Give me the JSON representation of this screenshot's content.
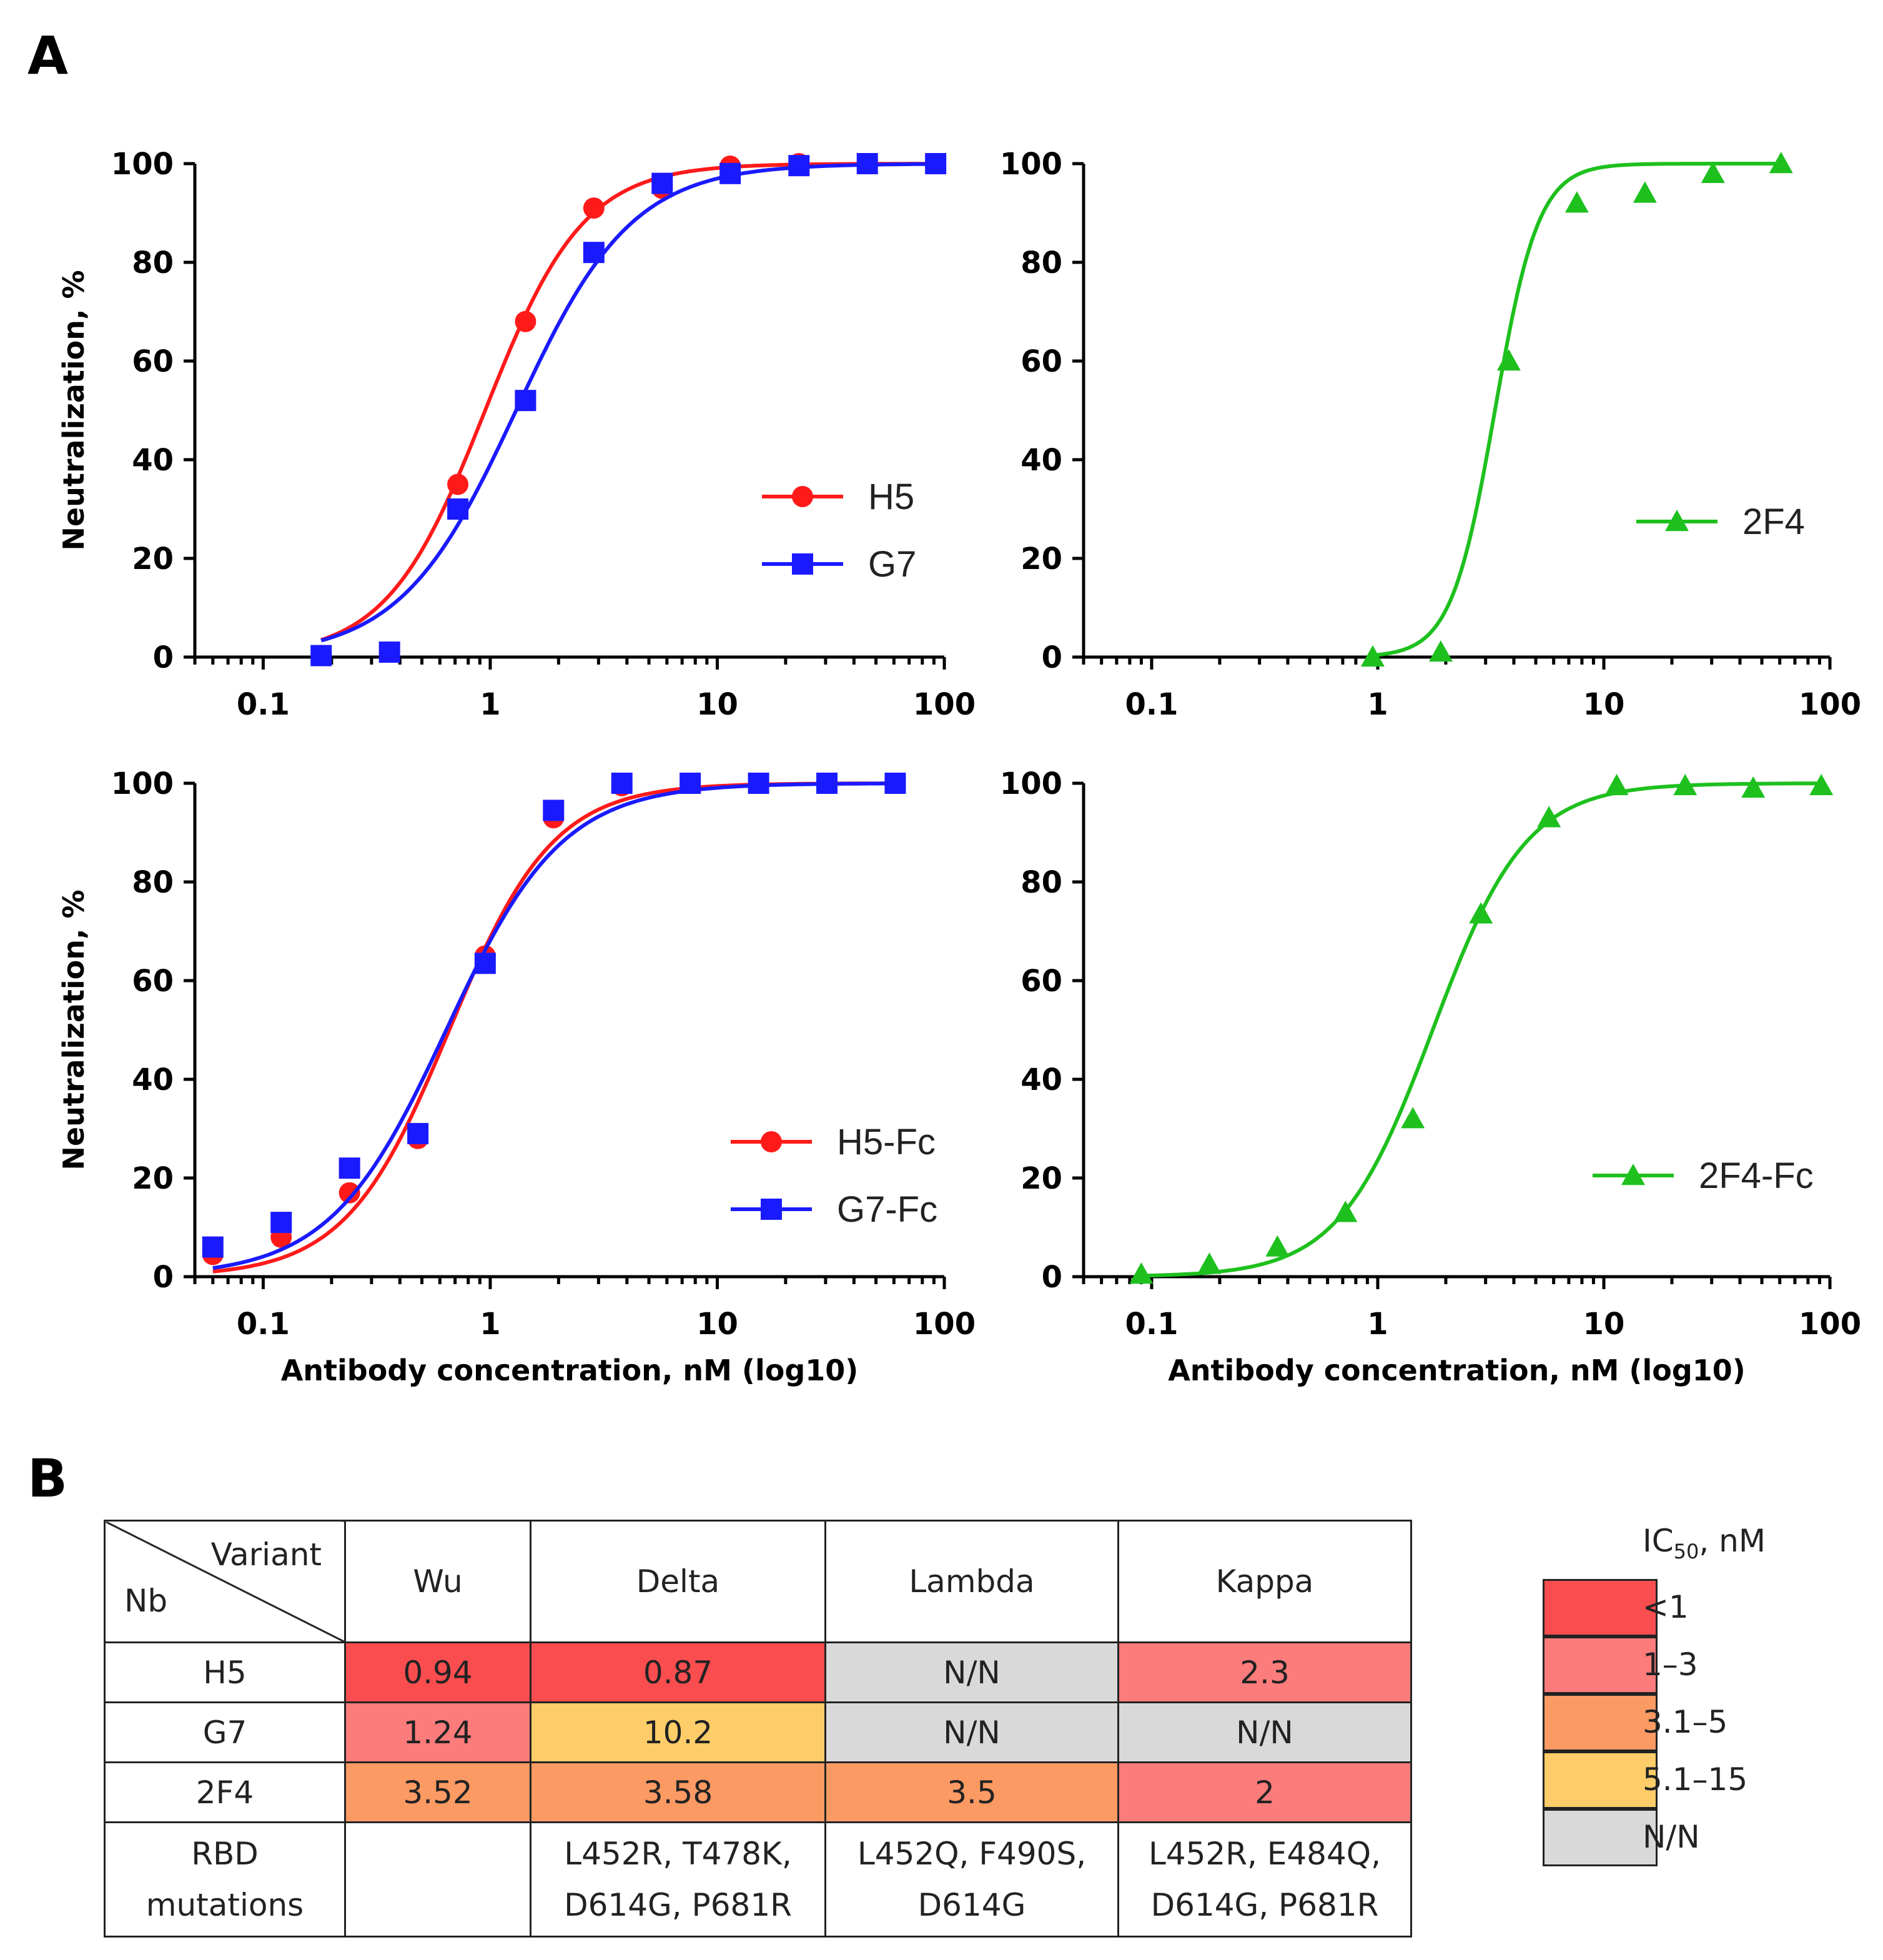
{
  "panel_labels": {
    "a": "A",
    "b": "B"
  },
  "chart_data": [
    {
      "type": "line",
      "ylabel": "Neutralization, %",
      "xlabel": "",
      "xscale": "log10",
      "xlim": [
        0.05,
        100
      ],
      "ylim": [
        0,
        100
      ],
      "xticks": [
        "0.1",
        "1",
        "10",
        "100"
      ],
      "yticks": [
        "0",
        "20",
        "40",
        "60",
        "80",
        "100"
      ],
      "legend_position": "right-middle",
      "series": [
        {
          "name": "H5",
          "color": "#ff1a1a",
          "marker": "circle",
          "ec50": 0.95,
          "hill": 2.0,
          "x": [
            0.18,
            0.36,
            0.72,
            1.43,
            2.86,
            5.72,
            11.4,
            22.9,
            45.8,
            91.6
          ],
          "y": [
            0.3,
            1,
            35,
            68,
            91,
            95,
            99.5,
            100,
            100,
            100
          ]
        },
        {
          "name": "G7",
          "color": "#1a1aff",
          "marker": "square",
          "ec50": 1.3,
          "hill": 1.7,
          "x": [
            0.18,
            0.36,
            0.72,
            1.43,
            2.86,
            5.72,
            11.4,
            22.9,
            45.8,
            91.6
          ],
          "y": [
            0.3,
            1,
            30,
            52,
            82,
            96,
            98,
            99.6,
            100,
            100
          ]
        }
      ]
    },
    {
      "type": "line",
      "ylabel": "",
      "xlabel": "",
      "xscale": "log10",
      "xlim": [
        0.05,
        100
      ],
      "ylim": [
        0,
        100
      ],
      "xticks": [
        "0.1",
        "1",
        "10",
        "100"
      ],
      "yticks": [
        "0",
        "20",
        "40",
        "60",
        "80",
        "100"
      ],
      "legend_position": "right-middle",
      "series": [
        {
          "name": "2F4",
          "color": "#1ec01e",
          "marker": "triangle",
          "ec50": 3.3,
          "hill": 4.5,
          "x": [
            0.95,
            1.9,
            3.8,
            7.6,
            15.2,
            30.4,
            60.8
          ],
          "y": [
            0,
            1,
            60,
            92,
            94,
            98,
            100
          ]
        }
      ]
    },
    {
      "type": "line",
      "ylabel": "Neutralization, %",
      "xlabel": "Antibody concentration, nM (log10)",
      "xscale": "log10",
      "xlim": [
        0.05,
        100
      ],
      "ylim": [
        0,
        100
      ],
      "xticks": [
        "0.1",
        "1",
        "10",
        "100"
      ],
      "yticks": [
        "0",
        "20",
        "40",
        "60",
        "80",
        "100"
      ],
      "legend_position": "right-bottom",
      "series": [
        {
          "name": "H5-Fc",
          "color": "#ff1a1a",
          "marker": "circle",
          "ec50": 0.66,
          "hill": 1.9,
          "x": [
            0.06,
            0.12,
            0.24,
            0.48,
            0.95,
            1.9,
            3.8,
            7.6,
            15.2,
            30.4,
            60.8
          ],
          "y": [
            4.5,
            8,
            17,
            28,
            65,
            93,
            99.5,
            100,
            100,
            100,
            100
          ]
        },
        {
          "name": "G7-Fc",
          "color": "#1a1aff",
          "marker": "square",
          "ec50": 0.64,
          "hill": 1.7,
          "x": [
            0.06,
            0.12,
            0.24,
            0.48,
            0.95,
            1.9,
            3.8,
            7.6,
            15.2,
            30.4,
            60.8
          ],
          "y": [
            6,
            11,
            22,
            29,
            63.5,
            94.5,
            100,
            100,
            100,
            100,
            100
          ]
        }
      ]
    },
    {
      "type": "line",
      "ylabel": "",
      "xlabel": "Antibody concentration, nM (log10)",
      "xscale": "log10",
      "xlim": [
        0.05,
        100
      ],
      "ylim": [
        0,
        100
      ],
      "xticks": [
        "0.1",
        "1",
        "10",
        "100"
      ],
      "yticks": [
        "0",
        "20",
        "40",
        "60",
        "80",
        "100"
      ],
      "legend_position": "right-bottom",
      "series": [
        {
          "name": "2F4-Fc",
          "color": "#1ec01e",
          "marker": "triangle",
          "ec50": 1.75,
          "hill": 2.1,
          "x": [
            0.09,
            0.18,
            0.36,
            0.72,
            1.43,
            2.86,
            5.72,
            11.4,
            22.9,
            45.8,
            91.6
          ],
          "y": [
            0.5,
            2.5,
            6,
            13,
            32,
            73.5,
            93,
            99.5,
            99.5,
            99,
            99.5
          ]
        }
      ]
    }
  ],
  "table": {
    "corner_variant": "Variant",
    "corner_nb": "Nb",
    "columns": [
      "Wu",
      "Delta",
      "Lambda",
      "Kappa"
    ],
    "rows": [
      {
        "nb": "H5",
        "cells": [
          {
            "value": "0.94",
            "color": "#fa4d4f"
          },
          {
            "value": "0.87",
            "color": "#fa4d4f"
          },
          {
            "value": "N/N",
            "color": "#d9d9d9"
          },
          {
            "value": "2.3",
            "color": "#fc7c7c"
          }
        ]
      },
      {
        "nb": "G7",
        "cells": [
          {
            "value": "1.24",
            "color": "#fc7c7c"
          },
          {
            "value": "10.2",
            "color": "#fecd69"
          },
          {
            "value": "N/N",
            "color": "#d9d9d9"
          },
          {
            "value": "N/N",
            "color": "#d9d9d9"
          }
        ]
      },
      {
        "nb": "2F4",
        "cells": [
          {
            "value": "3.52",
            "color": "#fc9a64"
          },
          {
            "value": "3.58",
            "color": "#fc9a64"
          },
          {
            "value": "3.5",
            "color": "#fc9a64"
          },
          {
            "value": "2",
            "color": "#fc7c7c"
          }
        ]
      }
    ],
    "mutations_label_1": "RBD",
    "mutations_label_2": "mutations",
    "mutations": [
      {
        "line1": "",
        "line2": ""
      },
      {
        "line1": "L452R, T478K,",
        "line2": "D614G, P681R"
      },
      {
        "line1": "L452Q, F490S,",
        "line2": "D614G"
      },
      {
        "line1": "L452R, E484Q,",
        "line2": "D614G, P681R"
      }
    ]
  },
  "legend": {
    "title_prefix": "IC",
    "title_sub": "50",
    "title_suffix": ", nM",
    "items": [
      {
        "label": "<1",
        "color": "#fa4d4f"
      },
      {
        "label": "1–3",
        "color": "#fc7c7c"
      },
      {
        "label": "3.1–5",
        "color": "#fc9a64"
      },
      {
        "label": "5.1–15",
        "color": "#fecd69"
      },
      {
        "label": "N/N",
        "color": "#d9d9d9"
      }
    ]
  }
}
